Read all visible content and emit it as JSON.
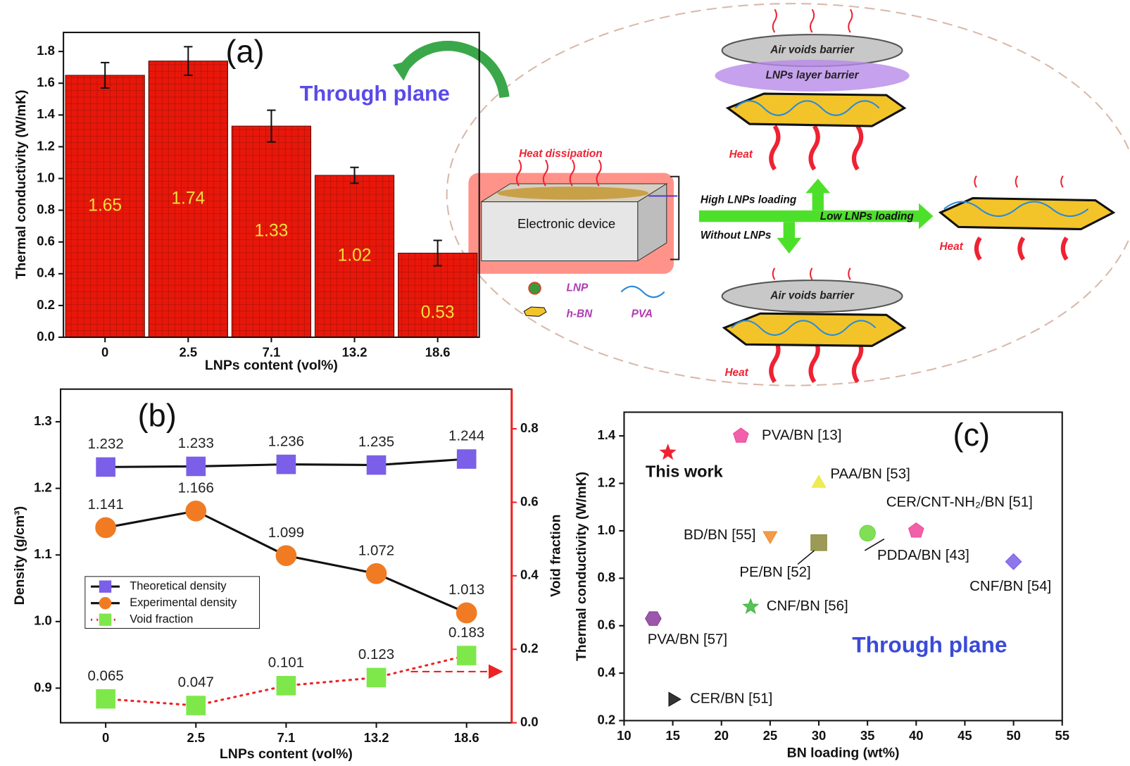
{
  "chart_data": [
    {
      "type": "bar",
      "title": "(a)",
      "annotation": "Through plane",
      "x_label": "LNPs content (vol%)",
      "y_label": "Thermal conductivity (W/mK)",
      "categories": [
        "0",
        "2.5",
        "7.1",
        "13.2",
        "18.6"
      ],
      "values": [
        1.65,
        1.74,
        1.33,
        1.02,
        0.53
      ],
      "errors": [
        0.08,
        0.09,
        0.1,
        0.05,
        0.08
      ],
      "color": "#e8170a",
      "label_color": "#f5e03a",
      "ylim": [
        0,
        1.92
      ],
      "yticks": [
        {
          "value": 0,
          "label": "0.0"
        },
        0.2,
        0.4,
        0.6,
        0.8,
        {
          "value": 1,
          "label": "1.0"
        },
        1.2,
        1.4,
        1.6,
        1.8
      ]
    },
    {
      "type": "line",
      "title": "(b)",
      "x_label": "LNPs content (vol%)",
      "y_label": "Density (g/cm³)",
      "y2_label": "Void fraction",
      "categories": [
        "0",
        "2.5",
        "7.1",
        "13.2",
        "18.6"
      ],
      "series": [
        {
          "name": "Theoretical density",
          "color": "#7b5fe8",
          "line_color": "#111111",
          "marker": "square",
          "values": [
            1.232,
            1.233,
            1.236,
            1.235,
            1.244
          ]
        },
        {
          "name": "Experimental density",
          "color": "#f07b22",
          "line_color": "#111111",
          "marker": "circle",
          "values": [
            1.141,
            1.166,
            1.099,
            1.072,
            1.013
          ]
        },
        {
          "name": "Void fraction",
          "color": "#7ee84a",
          "line_color": "#ee2222",
          "marker": "square",
          "axis": "y2",
          "values": [
            0.065,
            0.047,
            0.101,
            0.123,
            0.183
          ]
        }
      ],
      "ylim": [
        0.848,
        1.349
      ],
      "yticks": [
        0.9,
        {
          "value": 1,
          "label": "1.0"
        },
        1.1,
        1.2,
        1.3
      ],
      "y2lim": [
        0,
        0.908
      ],
      "y2ticks": [
        {
          "value": 0,
          "label": "0.0"
        },
        0.2,
        0.4,
        0.6,
        0.8
      ],
      "y2_color": "#ee2222",
      "legend": "lower left"
    },
    {
      "type": "scatter",
      "title": "(c)",
      "annotation": "Through plane",
      "x_label": "BN loading (wt%)",
      "y_label": "Thermal conductivity (W/mK)",
      "series": [
        {
          "name": "This work",
          "color": "#ee2233",
          "marker": "star",
          "x": [
            14.5
          ],
          "values": [
            1.33
          ]
        },
        {
          "name": "PVA/BN [13]",
          "color": "#f0449a",
          "marker": "pentagon",
          "x": [
            22
          ],
          "values": [
            1.4
          ]
        },
        {
          "name": "PAA/BN [53]",
          "color": "#ece83a",
          "marker": "triangle",
          "x": [
            30
          ],
          "values": [
            1.2
          ]
        },
        {
          "name": "CER/CNT-NH₂/BN [51]",
          "color": "#6ad83a",
          "marker": "circle",
          "x": [
            35
          ],
          "values": [
            0.99
          ]
        },
        {
          "name": "BD/BN [55]",
          "color": "#f08a2a",
          "marker": "triangle-down",
          "x": [
            25
          ],
          "values": [
            0.98
          ]
        },
        {
          "name": "PE/BN [52]",
          "color": "#8a8a3a",
          "marker": "square",
          "x": [
            30
          ],
          "values": [
            0.95
          ]
        },
        {
          "name": "PDDA/BN [43]",
          "color": "#f0449a",
          "marker": "pentagon",
          "x": [
            40
          ],
          "values": [
            1.0
          ]
        },
        {
          "name": "CNF/BN [54]",
          "color": "#7b5fe8",
          "marker": "diamond",
          "x": [
            50
          ],
          "values": [
            0.87
          ]
        },
        {
          "name": "CNF/BN [56]",
          "color": "#3ab83a",
          "marker": "star",
          "x": [
            23
          ],
          "values": [
            0.68
          ]
        },
        {
          "name": "PVA/BN [57]",
          "color": "#8a3a9a",
          "marker": "hexagon",
          "x": [
            13
          ],
          "values": [
            0.63
          ]
        },
        {
          "name": "CER/BN [51]",
          "color": "#111111",
          "marker": "triangle-right",
          "x": [
            15
          ],
          "values": [
            0.29
          ]
        }
      ],
      "xlim": [
        10,
        55
      ],
      "xticks": [
        10,
        15,
        20,
        25,
        30,
        35,
        40,
        45,
        50,
        55
      ],
      "ylim": [
        0.2,
        1.5
      ],
      "yticks": [
        0.2,
        0.4,
        0.6,
        0.8,
        {
          "value": 1,
          "label": "1.0"
        },
        1.2,
        1.4
      ],
      "annotation_color": "#3a4ad8"
    }
  ],
  "diagram": {
    "heat_dissipation": "Heat dissipation",
    "electronic_device": "Electronic device",
    "high_loading": "High LNPs loading",
    "low_loading": "Low LNPs loading",
    "without": "Without LNPs",
    "air_voids_top": "Air voids barrier",
    "lnps_layer": "LNPs layer barrier",
    "air_voids_bottom": "Air voids barrier",
    "heat": [
      "Heat",
      "Heat",
      "Heat"
    ],
    "legend": [
      "LNP",
      "h-BN",
      "PVA"
    ]
  }
}
